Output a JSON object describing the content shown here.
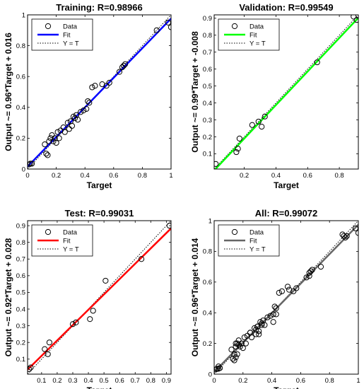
{
  "chart_data": [
    {
      "type": "scatter",
      "title": "Training: R=0.98966",
      "xlabel": "Target",
      "ylabel": "Output ~= 0.96*Target + 0.016",
      "xlim": [
        0,
        1
      ],
      "ylim": [
        0,
        1
      ],
      "xticks": [
        "0",
        "0.2",
        "0.4",
        "0.6",
        "0.8",
        "1"
      ],
      "yticks": [
        "0",
        "0.2",
        "0.4",
        "0.6",
        "0.8",
        "1"
      ],
      "fit": {
        "slope": 0.96,
        "intercept": 0.016
      },
      "fit_color": "#0000ff",
      "legend": [
        "Data",
        "Fit",
        "Y = T"
      ],
      "legend_position": "top-left",
      "points": [
        [
          0.01,
          0.03
        ],
        [
          0.02,
          0.035
        ],
        [
          0.03,
          0.035
        ],
        [
          0.12,
          0.16
        ],
        [
          0.13,
          0.1
        ],
        [
          0.14,
          0.09
        ],
        [
          0.15,
          0.18
        ],
        [
          0.16,
          0.2
        ],
        [
          0.17,
          0.22
        ],
        [
          0.18,
          0.18
        ],
        [
          0.19,
          0.2
        ],
        [
          0.2,
          0.17
        ],
        [
          0.21,
          0.24
        ],
        [
          0.22,
          0.2
        ],
        [
          0.23,
          0.25
        ],
        [
          0.25,
          0.27
        ],
        [
          0.26,
          0.24
        ],
        [
          0.28,
          0.3
        ],
        [
          0.29,
          0.26
        ],
        [
          0.3,
          0.31
        ],
        [
          0.31,
          0.28
        ],
        [
          0.32,
          0.34
        ],
        [
          0.33,
          0.33
        ],
        [
          0.34,
          0.35
        ],
        [
          0.35,
          0.32
        ],
        [
          0.37,
          0.37
        ],
        [
          0.39,
          0.38
        ],
        [
          0.41,
          0.39
        ],
        [
          0.42,
          0.44
        ],
        [
          0.43,
          0.43
        ],
        [
          0.45,
          0.53
        ],
        [
          0.47,
          0.54
        ],
        [
          0.52,
          0.55
        ],
        [
          0.55,
          0.54
        ],
        [
          0.57,
          0.56
        ],
        [
          0.64,
          0.63
        ],
        [
          0.66,
          0.66
        ],
        [
          0.67,
          0.67
        ],
        [
          0.68,
          0.68
        ],
        [
          0.9,
          0.9
        ],
        [
          0.98,
          0.95
        ],
        [
          1.0,
          0.92
        ]
      ]
    },
    {
      "type": "scatter",
      "title": "Validation: R=0.99549",
      "xlabel": "Target",
      "ylabel": "Output ~= 0.99*Target + -0.008",
      "xlim": [
        0.01,
        0.92
      ],
      "ylim": [
        0.01,
        0.92
      ],
      "xticks": [
        "0.2",
        "0.4",
        "0.6",
        "0.8"
      ],
      "yticks": [
        "0.1",
        "0.2",
        "0.3",
        "0.4",
        "0.5",
        "0.6",
        "0.7",
        "0.8",
        "0.9"
      ],
      "fit": {
        "slope": 0.99,
        "intercept": -0.008
      },
      "fit_color": "#00ff00",
      "legend": [
        "Data",
        "Fit",
        "Y = T"
      ],
      "legend_position": "top-left",
      "points": [
        [
          0.02,
          0.04
        ],
        [
          0.15,
          0.11
        ],
        [
          0.16,
          0.13
        ],
        [
          0.17,
          0.19
        ],
        [
          0.25,
          0.27
        ],
        [
          0.29,
          0.29
        ],
        [
          0.31,
          0.26
        ],
        [
          0.33,
          0.32
        ],
        [
          0.66,
          0.64
        ],
        [
          0.89,
          0.91
        ],
        [
          0.91,
          0.89
        ]
      ]
    },
    {
      "type": "scatter",
      "title": "Test: R=0.99031",
      "xlabel": "Target",
      "ylabel": "Output ~= 0.92*Target + 0.028",
      "xlim": [
        0.01,
        0.93
      ],
      "ylim": [
        0.01,
        0.93
      ],
      "xticks": [
        "0.1",
        "0.2",
        "0.3",
        "0.4",
        "0.5",
        "0.6",
        "0.7",
        "0.8",
        "0.9"
      ],
      "yticks": [
        "0.1",
        "0.2",
        "0.3",
        "0.4",
        "0.5",
        "0.6",
        "0.7",
        "0.8",
        "0.9"
      ],
      "fit": {
        "slope": 0.92,
        "intercept": 0.028
      },
      "fit_color": "#ff0000",
      "legend": [
        "Data",
        "Fit",
        "Y = T"
      ],
      "legend_position": "top-left",
      "points": [
        [
          0.02,
          0.04
        ],
        [
          0.03,
          0.05
        ],
        [
          0.12,
          0.16
        ],
        [
          0.14,
          0.13
        ],
        [
          0.15,
          0.2
        ],
        [
          0.3,
          0.31
        ],
        [
          0.32,
          0.32
        ],
        [
          0.41,
          0.34
        ],
        [
          0.43,
          0.39
        ],
        [
          0.51,
          0.57
        ],
        [
          0.74,
          0.7
        ],
        [
          0.92,
          0.9
        ]
      ]
    },
    {
      "type": "scatter",
      "title": "All: R=0.99072",
      "xlabel": "Target",
      "ylabel": "Output ~= 0.96*Target + 0.014",
      "xlim": [
        0,
        1
      ],
      "ylim": [
        0,
        1
      ],
      "xticks": [
        "0",
        "0.2",
        "0.4",
        "0.6",
        "0.8",
        "1"
      ],
      "yticks": [
        "0",
        "0.2",
        "0.4",
        "0.6",
        "0.8",
        "1"
      ],
      "fit": {
        "slope": 0.96,
        "intercept": 0.014
      },
      "fit_color": "#666666",
      "legend": [
        "Data",
        "Fit",
        "Y = T"
      ],
      "legend_position": "top-left",
      "points": [
        [
          0.01,
          0.03
        ],
        [
          0.02,
          0.035
        ],
        [
          0.03,
          0.035
        ],
        [
          0.04,
          0.04
        ],
        [
          0.12,
          0.16
        ],
        [
          0.13,
          0.1
        ],
        [
          0.14,
          0.09
        ],
        [
          0.15,
          0.18
        ],
        [
          0.16,
          0.2
        ],
        [
          0.17,
          0.22
        ],
        [
          0.18,
          0.18
        ],
        [
          0.19,
          0.2
        ],
        [
          0.2,
          0.17
        ],
        [
          0.21,
          0.24
        ],
        [
          0.22,
          0.2
        ],
        [
          0.23,
          0.25
        ],
        [
          0.25,
          0.27
        ],
        [
          0.26,
          0.24
        ],
        [
          0.28,
          0.3
        ],
        [
          0.29,
          0.26
        ],
        [
          0.3,
          0.31
        ],
        [
          0.31,
          0.28
        ],
        [
          0.32,
          0.34
        ],
        [
          0.33,
          0.33
        ],
        [
          0.34,
          0.35
        ],
        [
          0.35,
          0.32
        ],
        [
          0.37,
          0.37
        ],
        [
          0.39,
          0.38
        ],
        [
          0.41,
          0.39
        ],
        [
          0.42,
          0.44
        ],
        [
          0.43,
          0.43
        ],
        [
          0.45,
          0.53
        ],
        [
          0.47,
          0.54
        ],
        [
          0.52,
          0.55
        ],
        [
          0.55,
          0.54
        ],
        [
          0.57,
          0.56
        ],
        [
          0.64,
          0.63
        ],
        [
          0.66,
          0.66
        ],
        [
          0.67,
          0.67
        ],
        [
          0.68,
          0.68
        ],
        [
          0.9,
          0.9
        ],
        [
          0.98,
          0.95
        ],
        [
          1.0,
          0.92
        ],
        [
          0.15,
          0.11
        ],
        [
          0.16,
          0.13
        ],
        [
          0.17,
          0.19
        ],
        [
          0.25,
          0.27
        ],
        [
          0.29,
          0.29
        ],
        [
          0.31,
          0.26
        ],
        [
          0.33,
          0.32
        ],
        [
          0.66,
          0.64
        ],
        [
          0.89,
          0.91
        ],
        [
          0.91,
          0.89
        ],
        [
          0.03,
          0.05
        ],
        [
          0.14,
          0.13
        ],
        [
          0.15,
          0.2
        ],
        [
          0.3,
          0.31
        ],
        [
          0.41,
          0.34
        ],
        [
          0.43,
          0.39
        ],
        [
          0.51,
          0.57
        ],
        [
          0.74,
          0.7
        ],
        [
          0.92,
          0.9
        ]
      ]
    }
  ]
}
